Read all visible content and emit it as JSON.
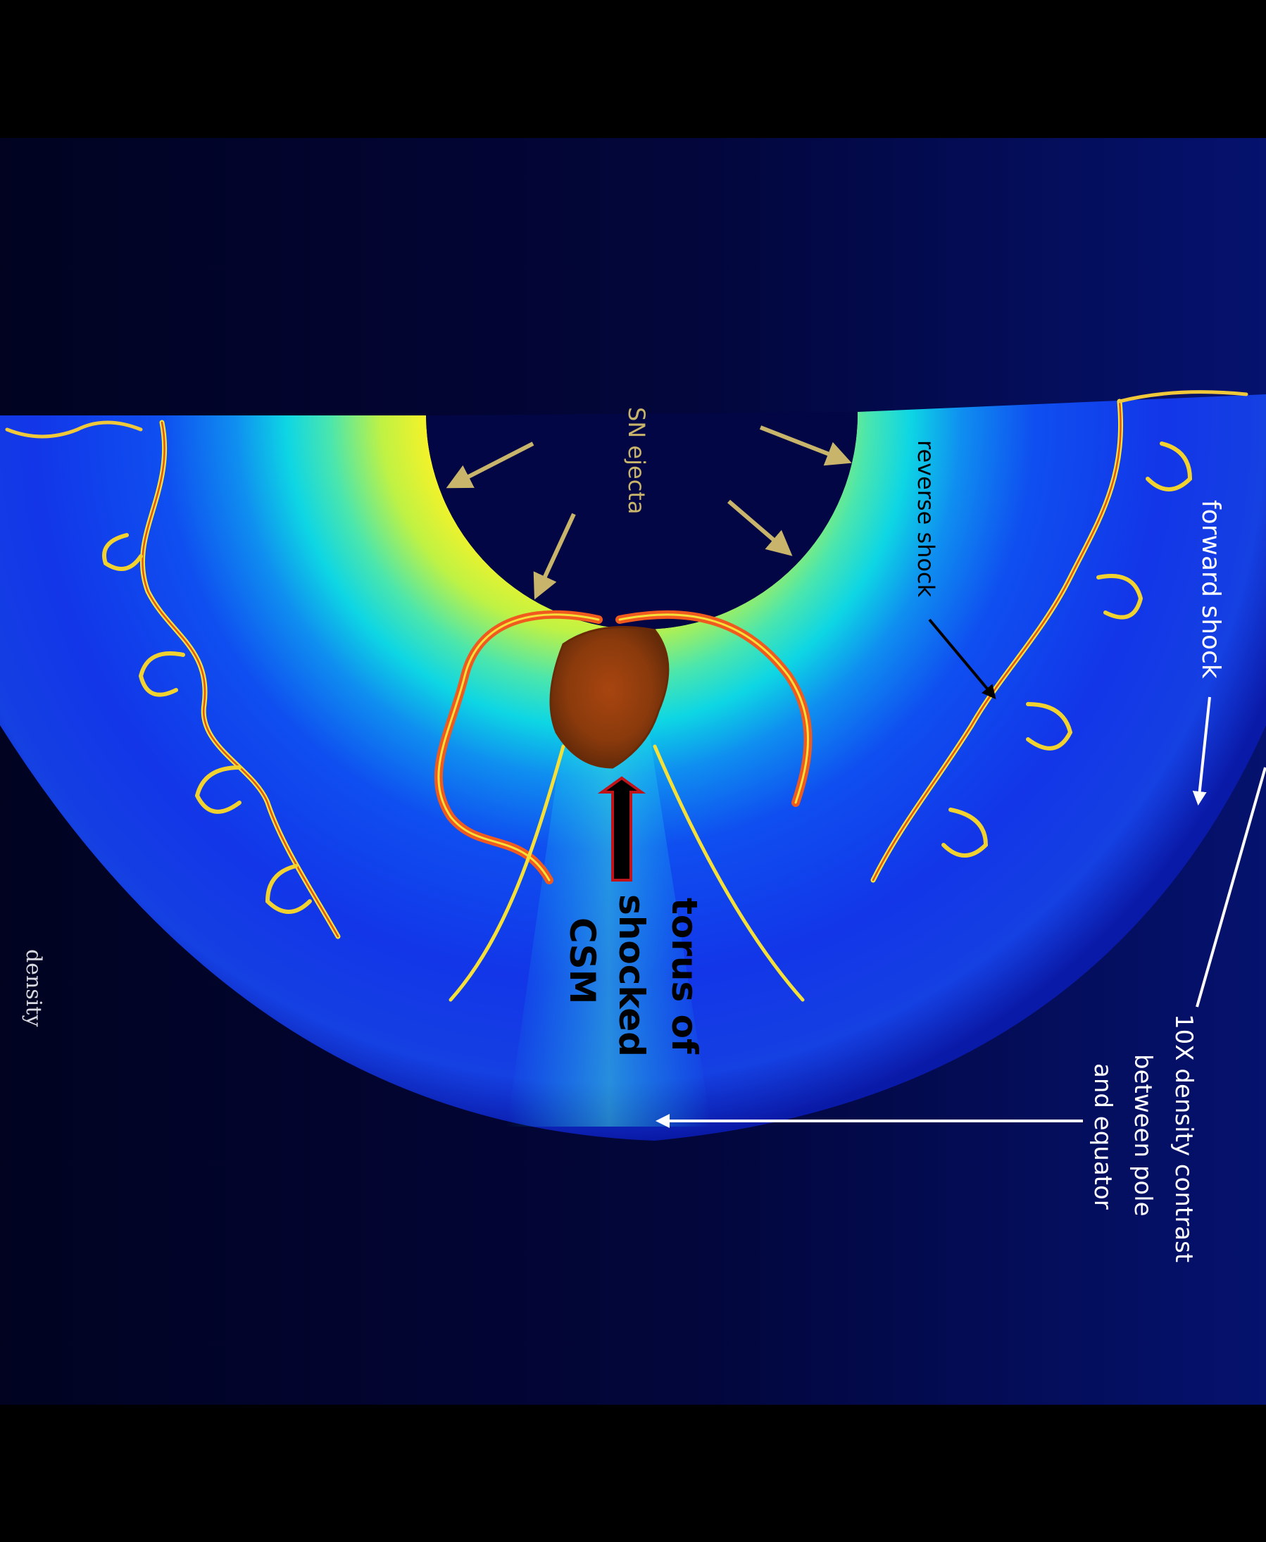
{
  "figure": {
    "colorbar_label": "density",
    "colors": {
      "background": "#02053a",
      "letterbox": "#000000",
      "ejecta_arrow": "#c8b46a",
      "annotation_white": "#ffffff",
      "torus_arrow_fill": "#000000",
      "torus_arrow_outline": "#c0141a"
    }
  },
  "annotations": {
    "sn_ejecta": "SN ejecta",
    "reverse_shock": "reverse shock",
    "forward_shock": "forward shock",
    "torus": [
      "torus of",
      "shocked",
      "CSM"
    ],
    "density_contrast": [
      "10X density contrast",
      "between pole",
      "and equator"
    ]
  }
}
